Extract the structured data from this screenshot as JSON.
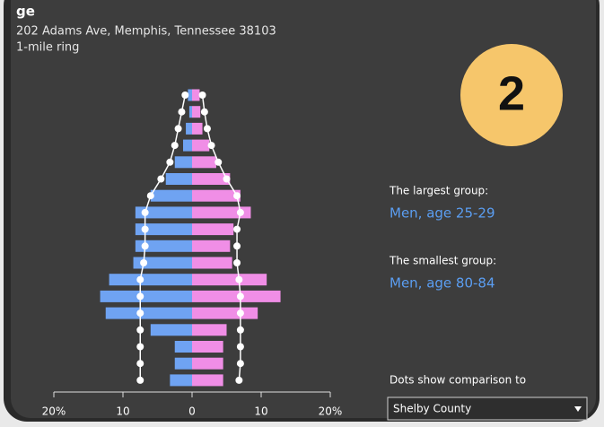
{
  "chart_data": {
    "type": "pyramid",
    "title": "ge",
    "subtitle": [
      "202 Adams Ave, Memphis, Tennessee 38103",
      "1-mile ring"
    ],
    "badge": "2",
    "annotations": [
      {
        "label": "The largest group:",
        "value": "Men, age 25-29"
      },
      {
        "label": "The smallest group:",
        "value": "Men, age 80-84"
      }
    ],
    "comparison_label": "Dots show comparison to",
    "comparison_select": "Shelby County",
    "xlim": [
      -20,
      20
    ],
    "xticks": [
      {
        "value": -20,
        "label": "20%"
      },
      {
        "value": -10,
        "label": "10"
      },
      0,
      10,
      {
        "value": 20,
        "label": "20%"
      }
    ],
    "series": [
      {
        "color": "#6fa3f2",
        "side": "left",
        "values": [
          0.6,
          0.4,
          0.9,
          1.3,
          2.5,
          3.8,
          6,
          8.2,
          8.2,
          8.2,
          8.5,
          12,
          13.3,
          12.5,
          6,
          2.5,
          2.5,
          3.2
        ],
        "comparison": [
          1,
          1.5,
          2,
          2.5,
          3.2,
          4.5,
          6,
          6.8,
          6.8,
          6.8,
          7,
          7.5,
          7.5,
          7.5,
          7.5,
          7.5,
          7.5,
          7.5
        ]
      },
      {
        "color": "#f08ee6",
        "side": "right",
        "values": [
          1.1,
          1.2,
          1.5,
          2.5,
          3.5,
          5.5,
          7,
          8.5,
          6,
          5.5,
          5.8,
          10.8,
          12.8,
          9.5,
          5,
          4.5,
          4.5,
          4.5
        ],
        "comparison": [
          1.5,
          1.8,
          2.2,
          2.8,
          3.8,
          5,
          6.5,
          7,
          6.5,
          6.5,
          6.5,
          6.8,
          7,
          7,
          7,
          7,
          7,
          6.8
        ]
      }
    ]
  }
}
